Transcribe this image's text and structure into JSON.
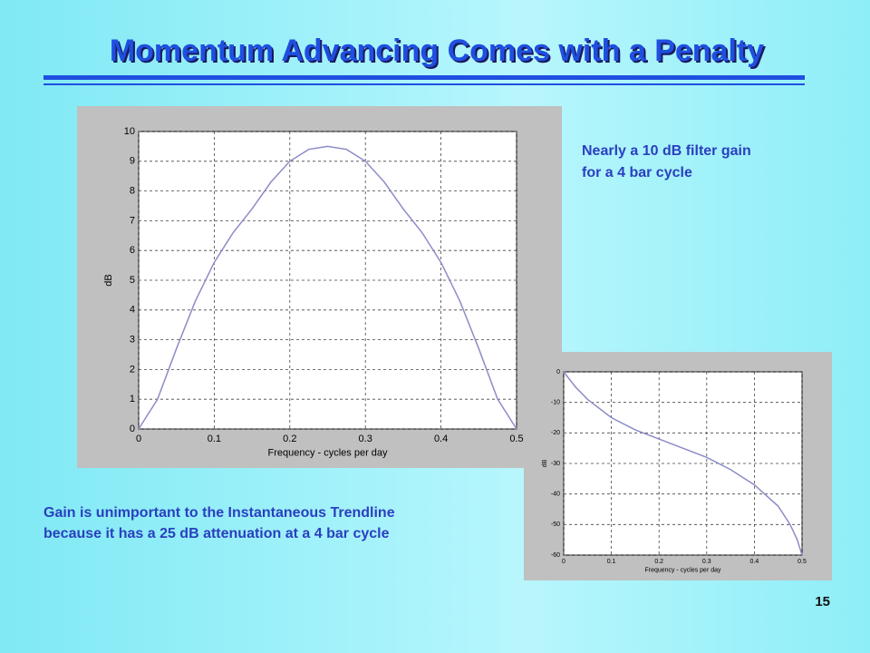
{
  "title": "Momentum Advancing Comes with a Penalty",
  "annotations": [
    [
      "Nearly a 10 dB filter gain",
      "for a 4 bar cycle"
    ],
    [
      "Gain is unimportant to the Instantaneous Trendline",
      "because it has a 25 dB attenuation at a 4 bar cycle"
    ]
  ],
  "page_number": "15",
  "chart_data": [
    {
      "type": "line",
      "x_label": "Frequency - cycles per day",
      "y_label": "dB",
      "color": "#8c8cc8",
      "grid": true,
      "x": [
        0,
        0.025,
        0.05,
        0.075,
        0.1,
        0.125,
        0.15,
        0.175,
        0.2,
        0.225,
        0.25,
        0.275,
        0.3,
        0.325,
        0.35,
        0.375,
        0.4,
        0.425,
        0.45,
        0.475,
        0.5
      ],
      "values": [
        0,
        1.0,
        2.7,
        4.3,
        5.6,
        6.6,
        7.4,
        8.3,
        9.0,
        9.4,
        9.5,
        9.4,
        9.0,
        8.3,
        7.4,
        6.6,
        5.6,
        4.3,
        2.7,
        1.0,
        0
      ],
      "xlim": [
        0,
        0.5
      ],
      "xticks": [
        0,
        0.1,
        0.2,
        0.3,
        0.4,
        0.5
      ],
      "ylim": [
        0,
        10
      ],
      "yticks": [
        0,
        1,
        2,
        3,
        4,
        5,
        6,
        7,
        8,
        9,
        10
      ]
    },
    {
      "type": "line",
      "x_label": "Frequency - cycles per day",
      "y_label": "dB",
      "color": "#8c8cc8",
      "grid": true,
      "x": [
        0,
        0.025,
        0.05,
        0.1,
        0.15,
        0.2,
        0.25,
        0.3,
        0.35,
        0.4,
        0.45,
        0.475,
        0.49,
        0.5
      ],
      "values": [
        0,
        -5,
        -9,
        -15,
        -19,
        -22,
        -25,
        -28,
        -32,
        -37,
        -44,
        -50,
        -55,
        -60
      ],
      "xlim": [
        0,
        0.5
      ],
      "xticks": [
        0,
        0.1,
        0.2,
        0.3,
        0.4,
        0.5
      ],
      "ylim": [
        -60,
        0
      ],
      "yticks": [
        -60,
        -50,
        -40,
        -30,
        -20,
        -10,
        0
      ]
    }
  ]
}
